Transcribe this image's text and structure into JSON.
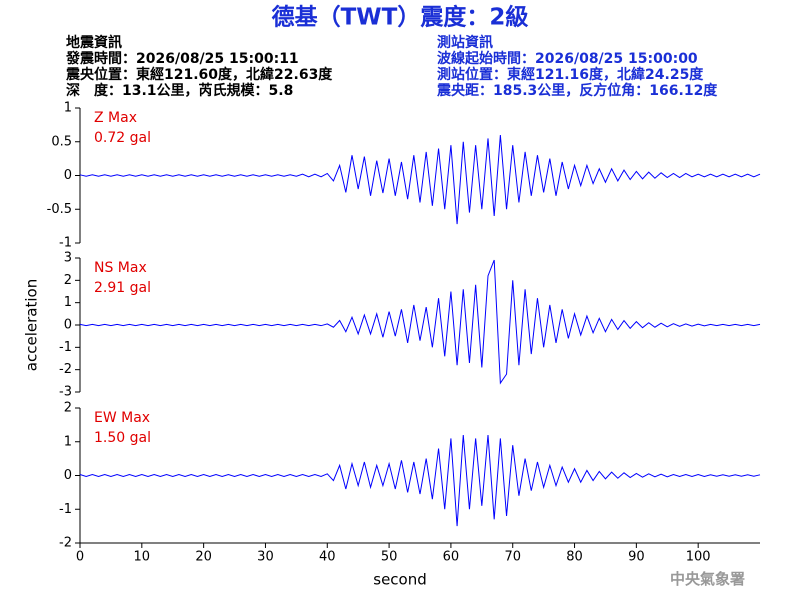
{
  "header": {
    "title": "德基（TWT）震度：2級",
    "left": [
      "地震資訊",
      "發震時間：2026/08/25 15:00:11",
      "震央位置：東經121.60度，北緯22.63度",
      "深　度：13.1公里，芮氏規模：5.8"
    ],
    "right": [
      "測站資訊",
      "波線起始時間：2026/08/25 15:00:00",
      "測站位置：東經121.16度，北緯24.25度",
      "震央距：185.3公里，反方位角：166.12度"
    ],
    "credit": "中央氣象署"
  },
  "chart_data": [
    {
      "type": "line",
      "label": "Z Max",
      "max_label": "0.72 gal",
      "color": "#0000ff",
      "label_color": "#e00000",
      "ylim": [
        -1,
        1
      ],
      "yticks": [
        -1,
        -0.5,
        0,
        0.5,
        1
      ],
      "xlim": [
        0,
        110
      ],
      "x": [
        0,
        1,
        2,
        3,
        4,
        5,
        6,
        7,
        8,
        9,
        10,
        11,
        12,
        13,
        14,
        15,
        16,
        17,
        18,
        19,
        20,
        21,
        22,
        23,
        24,
        25,
        26,
        27,
        28,
        29,
        30,
        31,
        32,
        33,
        34,
        35,
        36,
        37,
        38,
        39,
        40,
        41,
        42,
        43,
        44,
        45,
        46,
        47,
        48,
        49,
        50,
        51,
        52,
        53,
        54,
        55,
        56,
        57,
        58,
        59,
        60,
        61,
        62,
        63,
        64,
        65,
        66,
        67,
        68,
        69,
        70,
        71,
        72,
        73,
        74,
        75,
        76,
        77,
        78,
        79,
        80,
        81,
        82,
        83,
        84,
        85,
        86,
        87,
        88,
        89,
        90,
        91,
        92,
        93,
        94,
        95,
        96,
        97,
        98,
        99,
        100,
        101,
        102,
        103,
        104,
        105,
        106,
        107,
        108,
        109,
        110
      ],
      "values": [
        0.01,
        -0.01,
        0.01,
        -0.01,
        0.01,
        -0.01,
        0.01,
        -0.01,
        0.01,
        -0.01,
        0.01,
        -0.01,
        0.01,
        -0.01,
        0.01,
        -0.01,
        0.01,
        -0.01,
        0.01,
        -0.01,
        0.01,
        -0.01,
        0.01,
        -0.01,
        0.01,
        -0.01,
        0.01,
        -0.01,
        0.01,
        -0.01,
        0.01,
        -0.01,
        0.01,
        -0.01,
        0.01,
        -0.01,
        0.02,
        -0.02,
        0.02,
        -0.02,
        0.03,
        -0.08,
        0.15,
        -0.25,
        0.3,
        -0.2,
        0.28,
        -0.3,
        0.22,
        -0.26,
        0.25,
        -0.3,
        0.2,
        -0.35,
        0.3,
        -0.4,
        0.35,
        -0.45,
        0.4,
        -0.5,
        0.45,
        -0.72,
        0.5,
        -0.55,
        0.45,
        -0.5,
        0.55,
        -0.6,
        0.6,
        -0.5,
        0.45,
        -0.4,
        0.35,
        -0.3,
        0.3,
        -0.25,
        0.25,
        -0.3,
        0.2,
        -0.2,
        0.15,
        -0.15,
        0.15,
        -0.12,
        0.1,
        -0.1,
        0.1,
        -0.08,
        0.08,
        -0.06,
        0.06,
        -0.05,
        0.05,
        -0.04,
        0.04,
        -0.03,
        0.03,
        -0.03,
        0.03,
        -0.02,
        0.02,
        -0.02,
        0.02,
        -0.02,
        0.02,
        -0.02,
        0.02,
        -0.02,
        0.02,
        -0.02,
        0.02
      ]
    },
    {
      "type": "line",
      "label": "NS Max",
      "max_label": "2.91 gal",
      "color": "#0000ff",
      "label_color": "#e00000",
      "y_label": "acceleration",
      "ylim": [
        -3,
        3
      ],
      "yticks": [
        -3,
        -2,
        -1,
        0,
        1,
        2,
        3
      ],
      "xlim": [
        0,
        110
      ],
      "x": [
        0,
        1,
        2,
        3,
        4,
        5,
        6,
        7,
        8,
        9,
        10,
        11,
        12,
        13,
        14,
        15,
        16,
        17,
        18,
        19,
        20,
        21,
        22,
        23,
        24,
        25,
        26,
        27,
        28,
        29,
        30,
        31,
        32,
        33,
        34,
        35,
        36,
        37,
        38,
        39,
        40,
        41,
        42,
        43,
        44,
        45,
        46,
        47,
        48,
        49,
        50,
        51,
        52,
        53,
        54,
        55,
        56,
        57,
        58,
        59,
        60,
        61,
        62,
        63,
        64,
        65,
        66,
        67,
        68,
        69,
        70,
        71,
        72,
        73,
        74,
        75,
        76,
        77,
        78,
        79,
        80,
        81,
        82,
        83,
        84,
        85,
        86,
        87,
        88,
        89,
        90,
        91,
        92,
        93,
        94,
        95,
        96,
        97,
        98,
        99,
        100,
        101,
        102,
        103,
        104,
        105,
        106,
        107,
        108,
        109,
        110
      ],
      "values": [
        0.03,
        -0.03,
        0.03,
        -0.03,
        0.03,
        -0.03,
        0.03,
        -0.03,
        0.03,
        -0.03,
        0.03,
        -0.03,
        0.03,
        -0.03,
        0.03,
        -0.03,
        0.03,
        -0.03,
        0.03,
        -0.03,
        0.03,
        -0.03,
        0.03,
        -0.03,
        0.03,
        -0.03,
        0.03,
        -0.03,
        0.03,
        -0.03,
        0.03,
        -0.03,
        0.03,
        -0.03,
        0.03,
        -0.03,
        0.03,
        -0.03,
        0.03,
        -0.03,
        0.05,
        -0.1,
        0.2,
        -0.3,
        0.35,
        -0.4,
        0.45,
        -0.4,
        0.5,
        -0.55,
        0.6,
        -0.5,
        0.7,
        -0.8,
        0.9,
        -0.7,
        0.8,
        -1.0,
        1.2,
        -1.4,
        1.5,
        -1.8,
        1.6,
        -1.7,
        1.8,
        -1.9,
        2.2,
        2.91,
        -2.6,
        -2.2,
        2.0,
        -1.8,
        1.6,
        -1.3,
        1.2,
        -1.0,
        0.9,
        -0.8,
        0.7,
        -0.6,
        0.5,
        -0.45,
        0.4,
        -0.35,
        0.3,
        -0.3,
        0.25,
        -0.2,
        0.2,
        -0.15,
        0.15,
        -0.12,
        0.1,
        -0.1,
        0.08,
        -0.08,
        0.06,
        -0.06,
        0.05,
        -0.05,
        0.04,
        -0.04,
        0.03,
        -0.03,
        0.03,
        -0.03,
        0.03,
        -0.03,
        0.03,
        -0.03,
        0.03
      ]
    },
    {
      "type": "line",
      "label": "EW Max",
      "max_label": "1.50 gal",
      "color": "#0000ff",
      "label_color": "#e00000",
      "x_label": "second",
      "ylim": [
        -2,
        2
      ],
      "yticks": [
        -2,
        -1,
        0,
        1,
        2
      ],
      "xlim": [
        0,
        110
      ],
      "xticks": [
        0,
        10,
        20,
        30,
        40,
        50,
        60,
        70,
        80,
        90,
        100
      ],
      "x": [
        0,
        1,
        2,
        3,
        4,
        5,
        6,
        7,
        8,
        9,
        10,
        11,
        12,
        13,
        14,
        15,
        16,
        17,
        18,
        19,
        20,
        21,
        22,
        23,
        24,
        25,
        26,
        27,
        28,
        29,
        30,
        31,
        32,
        33,
        34,
        35,
        36,
        37,
        38,
        39,
        40,
        41,
        42,
        43,
        44,
        45,
        46,
        47,
        48,
        49,
        50,
        51,
        52,
        53,
        54,
        55,
        56,
        57,
        58,
        59,
        60,
        61,
        62,
        63,
        64,
        65,
        66,
        67,
        68,
        69,
        70,
        71,
        72,
        73,
        74,
        75,
        76,
        77,
        78,
        79,
        80,
        81,
        82,
        83,
        84,
        85,
        86,
        87,
        88,
        89,
        90,
        91,
        92,
        93,
        94,
        95,
        96,
        97,
        98,
        99,
        100,
        101,
        102,
        103,
        104,
        105,
        106,
        107,
        108,
        109,
        110
      ],
      "values": [
        0.03,
        -0.03,
        0.03,
        -0.03,
        0.03,
        -0.03,
        0.03,
        -0.03,
        0.03,
        -0.03,
        0.03,
        -0.03,
        0.03,
        -0.03,
        0.03,
        -0.03,
        0.03,
        -0.03,
        0.03,
        -0.03,
        0.03,
        -0.03,
        0.03,
        -0.03,
        0.03,
        -0.03,
        0.03,
        -0.03,
        0.03,
        -0.03,
        0.03,
        -0.03,
        0.03,
        -0.03,
        0.03,
        -0.03,
        0.03,
        -0.03,
        0.03,
        -0.03,
        0.05,
        -0.15,
        0.3,
        -0.4,
        0.35,
        -0.3,
        0.4,
        -0.35,
        0.3,
        -0.3,
        0.35,
        -0.4,
        0.45,
        -0.5,
        0.4,
        -0.55,
        0.5,
        -0.7,
        0.8,
        -1.0,
        1.1,
        -1.5,
        1.2,
        -1.0,
        1.1,
        -0.9,
        1.2,
        -1.3,
        1.1,
        -1.2,
        0.9,
        -0.6,
        0.5,
        -0.45,
        0.4,
        -0.35,
        0.3,
        -0.3,
        0.25,
        -0.2,
        0.2,
        -0.2,
        0.15,
        -0.15,
        0.12,
        -0.1,
        0.1,
        -0.08,
        0.08,
        -0.06,
        0.06,
        -0.05,
        0.05,
        -0.04,
        0.04,
        -0.04,
        0.03,
        -0.03,
        0.03,
        -0.03,
        0.03,
        -0.03,
        0.02,
        -0.02,
        0.02,
        -0.02,
        0.02,
        -0.02,
        0.02,
        -0.02,
        0.02
      ]
    }
  ]
}
